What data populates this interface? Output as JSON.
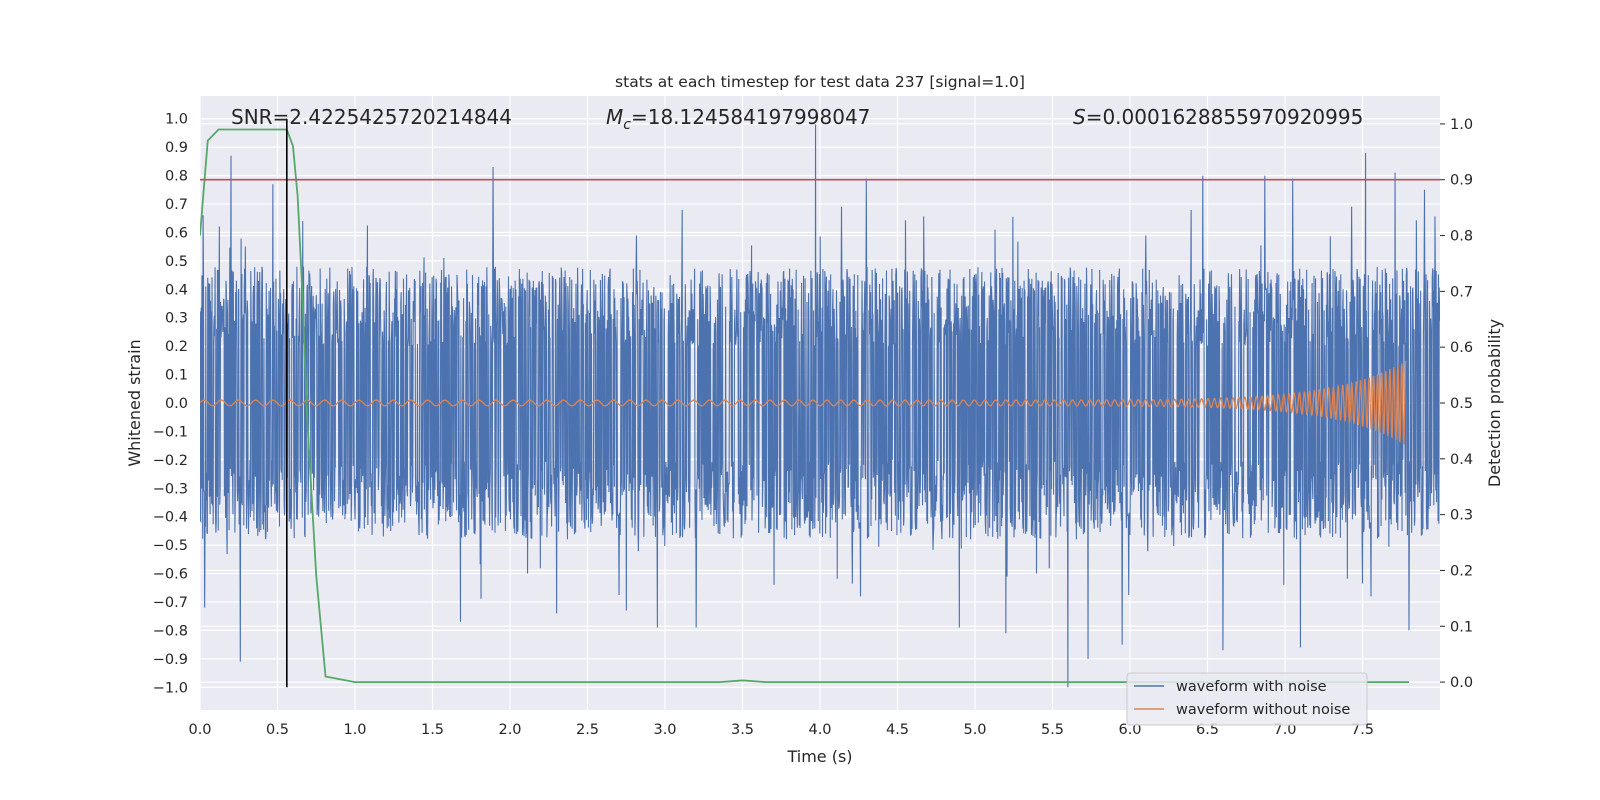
{
  "chart_data": {
    "type": "line",
    "title": "stats at each timestep for test data 237 [signal=1.0]",
    "xlabel": "Time (s)",
    "ylabel_left": "Whitened strain",
    "ylabel_right": "Detection probability",
    "xlim": [
      0.0,
      8.0
    ],
    "ylim_left": [
      -1.08,
      1.08
    ],
    "ylim_right": [
      -0.05,
      1.05
    ],
    "x_ticks": [
      "0.0",
      "0.5",
      "1.0",
      "1.5",
      "2.0",
      "2.5",
      "3.0",
      "3.5",
      "4.0",
      "4.5",
      "5.0",
      "5.5",
      "6.0",
      "6.5",
      "7.0",
      "7.5"
    ],
    "y_left_ticks": [
      "1.0",
      "0.9",
      "0.8",
      "0.7",
      "0.6",
      "0.5",
      "0.4",
      "0.3",
      "0.2",
      "0.1",
      "0.0",
      "−0.1",
      "−0.2",
      "−0.3",
      "−0.4",
      "−0.5",
      "−0.6",
      "−0.7",
      "−0.8",
      "−0.9",
      "−1.0"
    ],
    "y_right_ticks": [
      "1.0",
      "0.9",
      "0.8",
      "0.7",
      "0.6",
      "0.5",
      "0.4",
      "0.3",
      "0.2",
      "0.1",
      "0.0"
    ],
    "annotations": {
      "snr": "SNR=2.4225425720214844",
      "mc_symbol": "M",
      "mc_sub": "c",
      "mc_value": "=18.124584197998047",
      "s_symbol": "S",
      "s_value": "=0.0001628855970920995"
    },
    "legend": {
      "placement": "lower-right",
      "entries": [
        "waveform with noise",
        "waveform without noise"
      ]
    },
    "grid": true,
    "threshold": {
      "axis": "right",
      "value": 0.9,
      "color": "#c44e52"
    },
    "vertical_marker": {
      "x": 0.56,
      "y_from": -1.0,
      "y_to": 1.0,
      "color": "#000000"
    },
    "series": [
      {
        "name": "waveform with noise",
        "axis": "left",
        "color": "#4c72b0",
        "kind": "noise",
        "x_range": [
          0.0,
          8.0
        ],
        "typical_range": [
          -0.48,
          0.48
        ],
        "peaks": [
          {
            "x": 0.02,
            "y": 0.66
          },
          {
            "x": 0.03,
            "y": -0.72
          },
          {
            "x": 0.2,
            "y": 0.87
          },
          {
            "x": 0.26,
            "y": -0.91
          },
          {
            "x": 0.47,
            "y": 0.77
          },
          {
            "x": 1.89,
            "y": 0.83
          },
          {
            "x": 1.68,
            "y": -0.77
          },
          {
            "x": 2.3,
            "y": -0.74
          },
          {
            "x": 2.75,
            "y": -0.73
          },
          {
            "x": 2.95,
            "y": -0.79
          },
          {
            "x": 3.2,
            "y": -0.79
          },
          {
            "x": 3.97,
            "y": 0.98
          },
          {
            "x": 4.3,
            "y": 0.79
          },
          {
            "x": 4.9,
            "y": -0.79
          },
          {
            "x": 5.2,
            "y": -0.81
          },
          {
            "x": 5.6,
            "y": -1.0
          },
          {
            "x": 5.73,
            "y": -0.9
          },
          {
            "x": 5.95,
            "y": -0.85
          },
          {
            "x": 6.47,
            "y": 0.8
          },
          {
            "x": 6.6,
            "y": -0.87
          },
          {
            "x": 6.87,
            "y": 0.8
          },
          {
            "x": 7.05,
            "y": 0.79
          },
          {
            "x": 7.1,
            "y": -0.86
          },
          {
            "x": 7.52,
            "y": 0.88
          },
          {
            "x": 7.71,
            "y": 0.81
          },
          {
            "x": 7.8,
            "y": -0.8
          },
          {
            "x": 7.9,
            "y": 0.75
          }
        ]
      },
      {
        "name": "waveform without noise",
        "axis": "left",
        "color": "#dd8452",
        "kind": "chirp",
        "x_range": [
          0.0,
          7.78
        ],
        "amplitude_start": 0.01,
        "amplitude_end": 0.15,
        "cycles_start_per_s": 9,
        "cycles_end_per_s": 40
      },
      {
        "axis": "right",
        "color": "#55a868",
        "kind": "line",
        "x": [
          0.0,
          0.05,
          0.12,
          0.2,
          0.3,
          0.5,
          0.56,
          0.6,
          0.63,
          0.66,
          0.69,
          0.75,
          0.81,
          1.0,
          2.0,
          3.0,
          3.35,
          3.5,
          3.65,
          4.0,
          5.0,
          6.0,
          7.0,
          7.8
        ],
        "y": [
          0.8,
          0.97,
          0.99,
          0.99,
          0.99,
          0.99,
          0.99,
          0.96,
          0.87,
          0.7,
          0.48,
          0.19,
          0.01,
          0.0,
          0.0,
          0.0,
          0.0,
          0.003,
          0.0,
          0.0,
          0.0,
          0.0,
          0.0,
          0.0
        ]
      }
    ]
  }
}
